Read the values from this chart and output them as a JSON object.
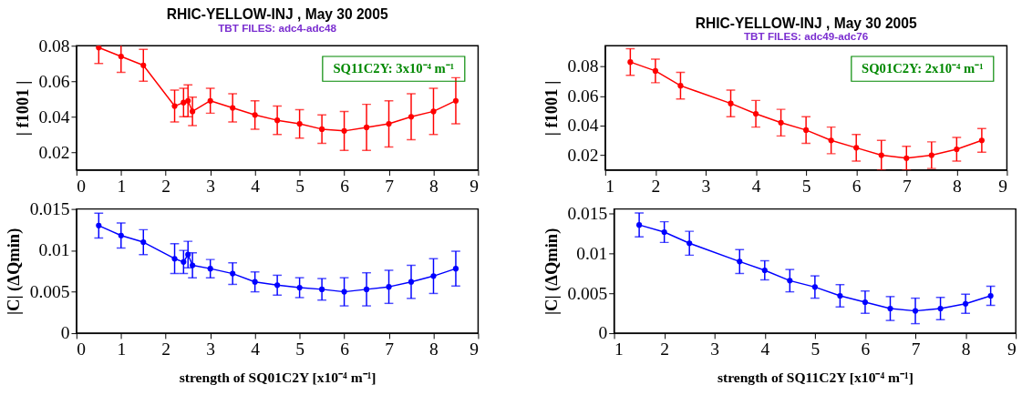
{
  "chart_data": [
    {
      "type": "line",
      "title": "RHIC-YELLOW-INJ , May 30 2005",
      "subtitle": "TBT FILES: adc4-adc48",
      "ylabel": "| f1001 |",
      "annotations": [
        "SQ11C2Y: 3x10⁻⁴ m⁻¹"
      ],
      "x": [
        0.5,
        1,
        1.5,
        2.2,
        2.4,
        2.5,
        2.6,
        3,
        3.5,
        4,
        4.5,
        5,
        5.5,
        6,
        6.5,
        7,
        7.5,
        8,
        8.5
      ],
      "series": [
        {
          "color": "#ff0000",
          "values": [
            0.079,
            0.074,
            0.069,
            0.046,
            0.048,
            0.049,
            0.043,
            0.049,
            0.045,
            0.041,
            0.038,
            0.036,
            0.033,
            0.032,
            0.034,
            0.036,
            0.04,
            0.043,
            0.049
          ],
          "errors": [
            0.009,
            0.009,
            0.009,
            0.009,
            0.008,
            0.009,
            0.008,
            0.007,
            0.008,
            0.008,
            0.008,
            0.008,
            0.008,
            0.011,
            0.013,
            0.013,
            0.013,
            0.013,
            0.013
          ]
        }
      ],
      "xlim": [
        0,
        9
      ],
      "xticks": [
        0,
        1,
        2,
        3,
        4,
        5,
        6,
        7,
        8,
        9
      ],
      "ylim": [
        0.01,
        0.08
      ],
      "yticks": [
        0.02,
        0.04,
        0.06,
        0.08
      ],
      "marker": "circle",
      "line_style": "solid",
      "grid": false
    },
    {
      "type": "line",
      "title": "RHIC-YELLOW-INJ , May 30 2005",
      "subtitle": "TBT FILES: adc49-adc76",
      "ylabel": "| f1001 |",
      "annotations": [
        "SQ01C2Y: 2x10⁻⁴ m⁻¹"
      ],
      "x": [
        1.5,
        2,
        2.5,
        3.5,
        4,
        4.5,
        5,
        5.5,
        6,
        6.5,
        7,
        7.5,
        8,
        8.5
      ],
      "series": [
        {
          "color": "#ff0000",
          "values": [
            0.083,
            0.077,
            0.067,
            0.055,
            0.048,
            0.042,
            0.037,
            0.03,
            0.025,
            0.02,
            0.018,
            0.02,
            0.024,
            0.03
          ],
          "errors": [
            0.009,
            0.008,
            0.009,
            0.009,
            0.009,
            0.009,
            0.009,
            0.009,
            0.009,
            0.01,
            0.008,
            0.009,
            0.008,
            0.008
          ]
        }
      ],
      "xlim": [
        1,
        9
      ],
      "xticks": [
        1,
        2,
        3,
        4,
        5,
        6,
        7,
        8,
        9
      ],
      "ylim": [
        0.01,
        0.094
      ],
      "yticks": [
        0.02,
        0.04,
        0.06,
        0.08
      ],
      "marker": "circle",
      "line_style": "solid",
      "grid": false
    },
    {
      "type": "line",
      "xlabel": "strength of  SQ01C2Y [x10⁻⁴ m⁻¹]",
      "ylabel": "|C|  (ΔQmin)",
      "x": [
        0.5,
        1,
        1.5,
        2.2,
        2.4,
        2.5,
        2.6,
        3,
        3.5,
        4,
        4.5,
        5,
        5.5,
        6,
        6.5,
        7,
        7.5,
        8,
        8.5
      ],
      "series": [
        {
          "color": "#0000ff",
          "values": [
            0.013,
            0.0118,
            0.011,
            0.009,
            0.0086,
            0.0095,
            0.0082,
            0.0078,
            0.0072,
            0.0062,
            0.0058,
            0.0055,
            0.0053,
            0.005,
            0.0053,
            0.0056,
            0.0062,
            0.0069,
            0.0078
          ],
          "errors": [
            0.0015,
            0.0015,
            0.0015,
            0.0018,
            0.0014,
            0.0016,
            0.0015,
            0.0011,
            0.0013,
            0.0012,
            0.0012,
            0.0012,
            0.0013,
            0.0017,
            0.002,
            0.002,
            0.002,
            0.0021,
            0.0021
          ]
        }
      ],
      "xlim": [
        0,
        9
      ],
      "xticks": [
        0,
        1,
        2,
        3,
        4,
        5,
        6,
        7,
        8,
        9
      ],
      "ylim": [
        0,
        0.015
      ],
      "yticks": [
        0,
        0.005,
        0.01,
        0.015
      ],
      "marker": "circle",
      "line_style": "solid",
      "grid": false
    },
    {
      "type": "line",
      "xlabel": "strength of  SQ11C2Y [x10⁻⁴ m⁻¹]",
      "ylabel": "|C|  (ΔQmin)",
      "x": [
        1.5,
        2,
        2.5,
        3.5,
        4,
        4.5,
        5,
        5.5,
        6,
        6.5,
        7,
        7.5,
        8,
        8.5
      ],
      "series": [
        {
          "color": "#0000ff",
          "values": [
            0.0136,
            0.0127,
            0.0113,
            0.009,
            0.0079,
            0.0066,
            0.0058,
            0.0047,
            0.0039,
            0.0031,
            0.0028,
            0.0031,
            0.0037,
            0.0047
          ],
          "errors": [
            0.0015,
            0.0013,
            0.0015,
            0.0015,
            0.0012,
            0.0014,
            0.0014,
            0.0014,
            0.0014,
            0.0015,
            0.0016,
            0.0014,
            0.0012,
            0.0012
          ]
        }
      ],
      "xlim": [
        1,
        9
      ],
      "xticks": [
        1,
        2,
        3,
        4,
        5,
        6,
        7,
        8,
        9
      ],
      "ylim": [
        0,
        0.0156
      ],
      "yticks": [
        0,
        0.005,
        0.01,
        0.015
      ],
      "marker": "circle",
      "line_style": "solid",
      "grid": false
    }
  ]
}
